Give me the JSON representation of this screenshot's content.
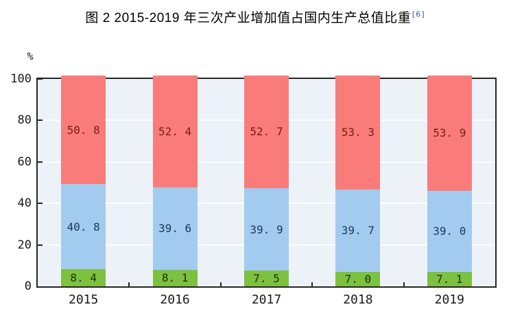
{
  "title": {
    "text": "图 2  2015-2019 年三次产业增加值占国内生产总值比重",
    "superscript": "[6]"
  },
  "axis": {
    "unit_label": "%",
    "y_tick_values": [
      0,
      20,
      40,
      60,
      80,
      100
    ],
    "x_labels": [
      "2015",
      "2016",
      "2017",
      "2018",
      "2019"
    ]
  },
  "chart_data": {
    "type": "bar",
    "stacked": true,
    "title": "图 2 2015-2019 年三次产业增加值占国内生产总值比重[6]",
    "categories": [
      "2015",
      "2016",
      "2017",
      "2018",
      "2019"
    ],
    "series": [
      {
        "key": "bottom-green",
        "color": "#7CC140",
        "label_color": "#1B3304",
        "values": [
          8.4,
          8.1,
          7.5,
          7.0,
          7.1
        ]
      },
      {
        "key": "middle-blue",
        "color": "#A3CBEF",
        "label_color": "#17375E",
        "values": [
          40.8,
          39.6,
          39.9,
          39.7,
          39.0
        ]
      },
      {
        "key": "top-red",
        "color": "#F97C7B",
        "label_color": "#7A1A12",
        "values": [
          50.8,
          52.4,
          52.7,
          53.3,
          53.9
        ]
      }
    ],
    "xlabel": "",
    "ylabel": "%",
    "ylim": [
      0,
      100
    ],
    "grid": true,
    "legend": "none"
  },
  "colors": {
    "plot_background": "#ECF2F7",
    "plot_border": "#262626",
    "gridline": "#FFFFFF",
    "footnote_link": "#3A47A5",
    "text": "#1a1a1a"
  }
}
